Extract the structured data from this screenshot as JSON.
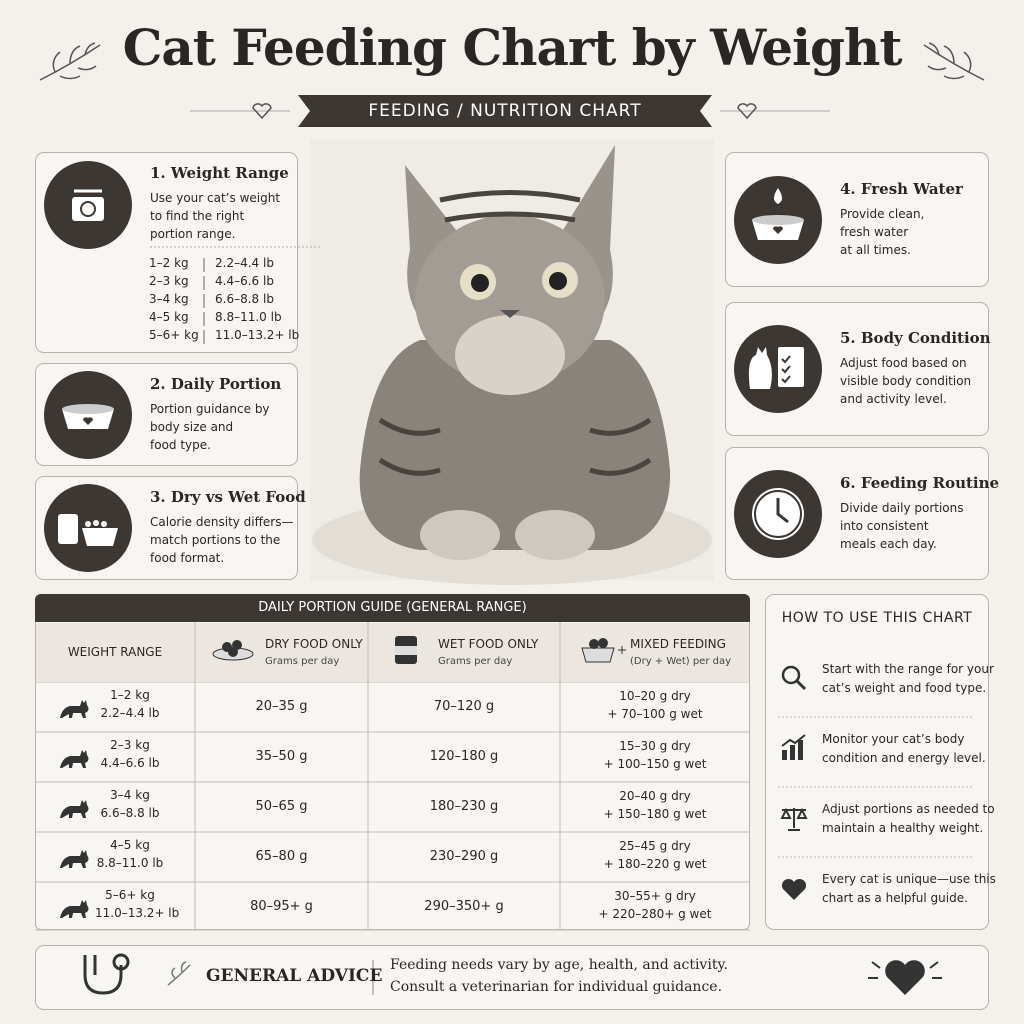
{
  "header": {
    "title": "Cat Feeding Chart by Weight",
    "subtitle": "FEEDING / NUTRITION CHART"
  },
  "cards": [
    {
      "title": "1. Weight Range",
      "lines": [
        "Use your cat’s weight",
        "to find the right",
        "portion range."
      ],
      "weights": [
        [
          "1–2 kg",
          "2.2–4.4 lb"
        ],
        [
          "2–3 kg",
          "4.4–6.6 lb"
        ],
        [
          "3–4 kg",
          "6.6–8.8 lb"
        ],
        [
          "4–5 kg",
          "8.8–11.0 lb"
        ],
        [
          "5–6+ kg",
          "11.0–13.2+ lb"
        ]
      ]
    },
    {
      "title": "2. Daily Portion",
      "lines": [
        "Portion guidance by",
        "body size and",
        "food type."
      ]
    },
    {
      "title": "3. Dry vs Wet Food",
      "lines": [
        "Calorie density differs—",
        "match portions to the",
        "food format."
      ]
    },
    {
      "title": "4. Fresh Water",
      "lines": [
        "Provide clean,",
        "fresh water",
        "at all times."
      ]
    },
    {
      "title": "5. Body Condition",
      "lines": [
        "Adjust food based on",
        "visible body condition",
        "and activity level."
      ]
    },
    {
      "title": "6. Feeding Routine",
      "lines": [
        "Divide daily portions",
        "into consistent",
        "meals each day."
      ]
    }
  ],
  "table": {
    "title": "DAILY PORTION GUIDE (GENERAL RANGE)",
    "columns": [
      {
        "title": "WEIGHT RANGE"
      },
      {
        "title": "DRY FOOD ONLY",
        "sub": "Grams per day"
      },
      {
        "title": "WET FOOD ONLY",
        "sub": "Grams per day"
      },
      {
        "title": "MIXED FEEDING",
        "sub": "(Dry + Wet) per day"
      }
    ],
    "rows": [
      {
        "kg": "1–2 kg",
        "lb": "2.2–4.4 lb",
        "dry": "20–35 g",
        "wet": "70–120 g",
        "mixed": [
          "10–20 g dry",
          "+ 70–100 g wet"
        ]
      },
      {
        "kg": "2–3 kg",
        "lb": "4.4–6.6 lb",
        "dry": "35–50 g",
        "wet": "120–180 g",
        "mixed": [
          "15–30 g dry",
          "+ 100–150 g wet"
        ]
      },
      {
        "kg": "3–4 kg",
        "lb": "6.6–8.8 lb",
        "dry": "50–65 g",
        "wet": "180–230 g",
        "mixed": [
          "20–40 g dry",
          "+ 150–180 g wet"
        ]
      },
      {
        "kg": "4–5 kg",
        "lb": "8.8–11.0 lb",
        "dry": "65–80 g",
        "wet": "230–290 g",
        "mixed": [
          "25–45 g dry",
          "+ 180–220 g wet"
        ]
      },
      {
        "kg": "5–6+ kg",
        "lb": "11.0–13.2+ lb",
        "dry": "80–95+ g",
        "wet": "290–350+ g",
        "mixed": [
          "30–55+ g dry",
          "+ 220–280+ g wet"
        ]
      }
    ]
  },
  "howto": {
    "title": "HOW TO USE THIS CHART",
    "items": [
      [
        "Start with the range for your",
        "cat’s weight and food type."
      ],
      [
        "Monitor your cat’s body",
        "condition and energy level."
      ],
      [
        "Adjust portions as needed to",
        "maintain a healthy weight."
      ],
      [
        "Every cat is unique—use this",
        "chart as a helpful guide."
      ]
    ]
  },
  "advice": {
    "label": "GENERAL ADVICE",
    "lines": [
      "Feeding needs vary by age, health, and activity.",
      "Consult a veterinarian for individual guidance."
    ]
  }
}
